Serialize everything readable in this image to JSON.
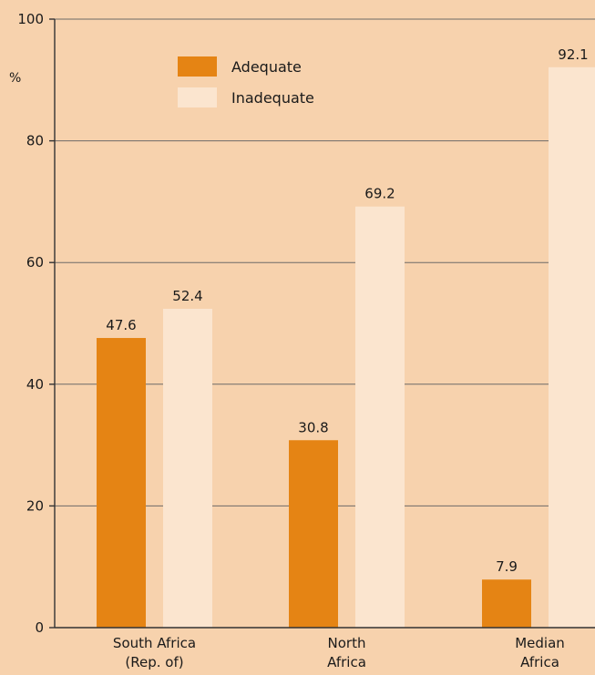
{
  "chart_data": {
    "type": "bar",
    "unit_label": "%",
    "categories": [
      [
        "South Africa",
        "(Rep. of)"
      ],
      [
        "North",
        "Africa"
      ],
      [
        "Median",
        "Africa"
      ]
    ],
    "series": [
      {
        "name": "Adequate",
        "values": [
          47.6,
          30.8,
          7.9
        ],
        "color": "#e58414"
      },
      {
        "name": "Inadequate",
        "values": [
          52.4,
          69.2,
          92.1
        ],
        "color": "#fbe5cf"
      }
    ],
    "ylim": [
      0,
      100
    ],
    "yticks": [
      0,
      20,
      40,
      60,
      80,
      100
    ],
    "grid": true,
    "legend_position": "top-left"
  },
  "colors": {
    "background": "#f7d2ad",
    "gridline": "#6e6a68"
  }
}
